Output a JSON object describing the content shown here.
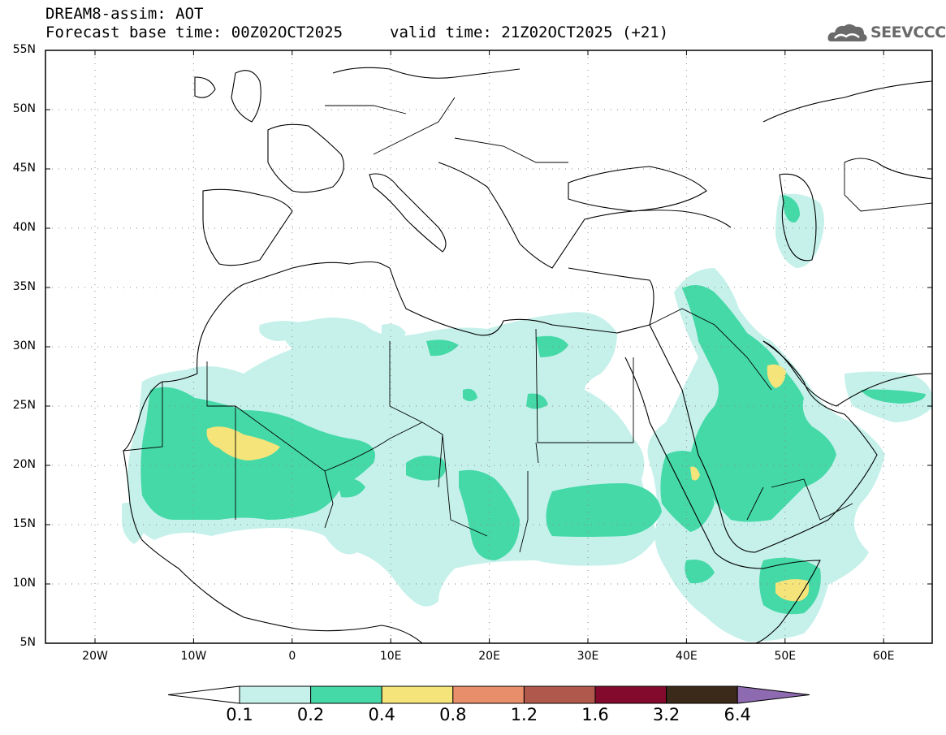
{
  "header": {
    "title": "DREAM8-assim: AOT",
    "base_time": "Forecast base time: 00Z02OCT2025",
    "valid_time": "valid time: 21Z02OCT2025 (+21)",
    "logo_text": "SEEVCCC"
  },
  "map": {
    "lat_labels": [
      "55N",
      "50N",
      "45N",
      "40N",
      "35N",
      "30N",
      "25N",
      "20N",
      "15N",
      "10N",
      "5N"
    ],
    "lon_labels": [
      "20W",
      "10W",
      "0",
      "10E",
      "20E",
      "30E",
      "40E",
      "50E",
      "60E"
    ]
  },
  "legend": {
    "thresholds": [
      "0.1",
      "0.2",
      "0.4",
      "0.8",
      "1.2",
      "1.6",
      "3.2",
      "6.4"
    ],
    "colors": [
      "#c5f1ea",
      "#45d9a8",
      "#f5e47a",
      "#e98e6b",
      "#b0584b",
      "#830a2d",
      "#3b2a1a",
      "#8e6bb0"
    ]
  }
}
